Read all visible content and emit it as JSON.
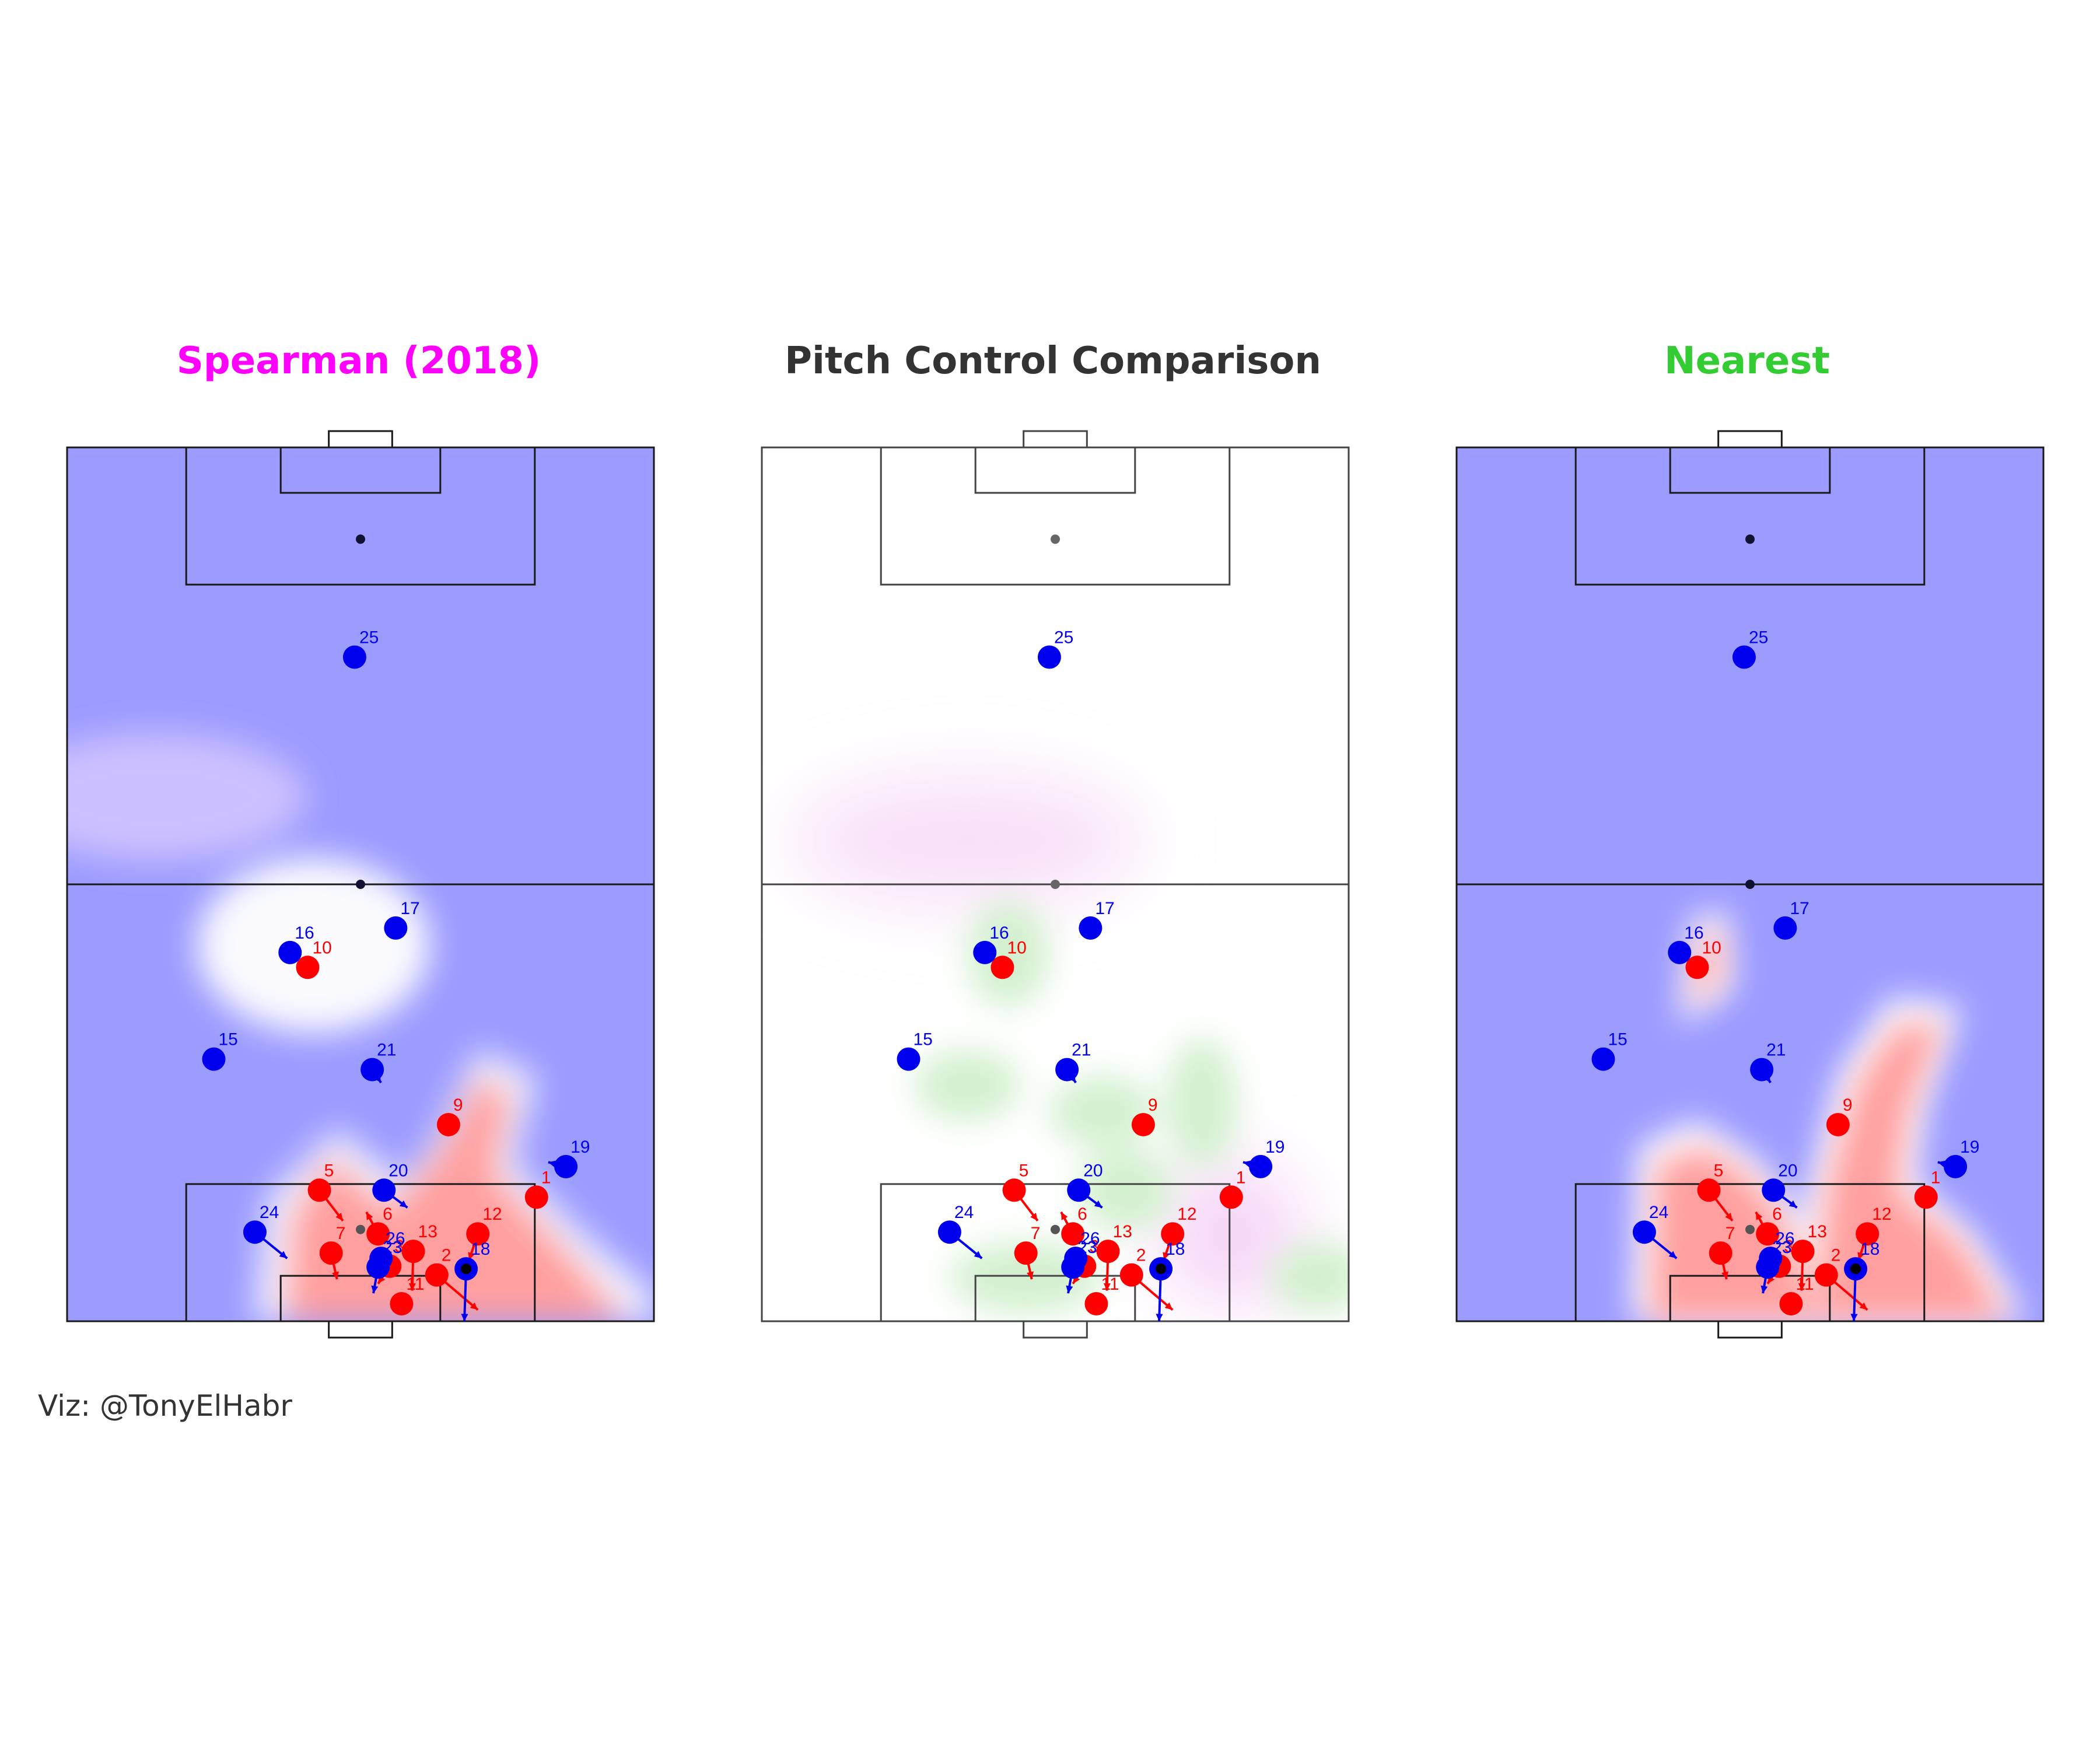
{
  "chart_data": {
    "type": "scatter",
    "title": "Pitch Control Comparison",
    "caption": "Viz: @TonyElHabr",
    "colors": {
      "home": "#ff0000",
      "away": "#0000ee",
      "spearman": "#ff00ff",
      "nearest": "#33cc33",
      "pitch_line": "#1a1a1a",
      "home_control": "#ff9f9f",
      "away_control": "#9c9cff"
    },
    "panels": [
      {
        "key": "spearman",
        "title": "Spearman (2018)",
        "title_color": "#ff00ff",
        "surface": "spearman"
      },
      {
        "key": "comparison",
        "title": "Pitch Control Comparison",
        "title_color": "#333333",
        "surface": "difference"
      },
      {
        "key": "nearest",
        "title": "Nearest",
        "title_color": "#33cc33",
        "surface": "nearest"
      }
    ],
    "x_range": [
      0,
      1
    ],
    "y_range": [
      0,
      1
    ],
    "ball": {
      "x": 0.5,
      "y": 0.105
    },
    "players": [
      {
        "team": "home",
        "label": "1",
        "x": 0.8,
        "y": 0.142,
        "vx": 0.0,
        "vy": 0.0
      },
      {
        "team": "home",
        "label": "2",
        "x": 0.63,
        "y": 0.053,
        "vx": 0.07,
        "vy": -0.04
      },
      {
        "team": "home",
        "label": "3",
        "x": 0.55,
        "y": 0.063,
        "vx": -0.02,
        "vy": -0.02
      },
      {
        "team": "home",
        "label": "5",
        "x": 0.43,
        "y": 0.15,
        "vx": 0.04,
        "vy": -0.035
      },
      {
        "team": "home",
        "label": "6",
        "x": 0.53,
        "y": 0.1,
        "vx": -0.02,
        "vy": 0.025
      },
      {
        "team": "home",
        "label": "7",
        "x": 0.45,
        "y": 0.078,
        "vx": 0.01,
        "vy": -0.03
      },
      {
        "team": "home",
        "label": "9",
        "x": 0.65,
        "y": 0.225,
        "vx": 0.0,
        "vy": -0.01
      },
      {
        "team": "home",
        "label": "10",
        "x": 0.41,
        "y": 0.405,
        "vx": 0.0,
        "vy": 0.0
      },
      {
        "team": "home",
        "label": "11",
        "x": 0.57,
        "y": 0.02,
        "vx": 0.0,
        "vy": 0.0
      },
      {
        "team": "home",
        "label": "12",
        "x": 0.7,
        "y": 0.1,
        "vx": -0.015,
        "vy": -0.03
      },
      {
        "team": "home",
        "label": "13",
        "x": 0.59,
        "y": 0.08,
        "vx": -0.002,
        "vy": -0.045
      },
      {
        "team": "away",
        "label": "15",
        "x": 0.25,
        "y": 0.3,
        "vx": 0.0,
        "vy": 0.0
      },
      {
        "team": "away",
        "label": "16",
        "x": 0.38,
        "y": 0.422,
        "vx": 0.0,
        "vy": 0.0
      },
      {
        "team": "away",
        "label": "17",
        "x": 0.56,
        "y": 0.45,
        "vx": 0.0,
        "vy": 0.0
      },
      {
        "team": "away",
        "label": "18",
        "x": 0.68,
        "y": 0.06,
        "vx": -0.003,
        "vy": -0.06
      },
      {
        "team": "away",
        "label": "19",
        "x": 0.85,
        "y": 0.177,
        "vx": -0.03,
        "vy": 0.005
      },
      {
        "team": "away",
        "label": "20",
        "x": 0.54,
        "y": 0.15,
        "vx": 0.04,
        "vy": -0.02
      },
      {
        "team": "away",
        "label": "21",
        "x": 0.52,
        "y": 0.288,
        "vx": 0.015,
        "vy": -0.015
      },
      {
        "team": "away",
        "label": "23",
        "x": 0.53,
        "y": 0.062,
        "vx": -0.008,
        "vy": -0.03
      },
      {
        "team": "away",
        "label": "24",
        "x": 0.32,
        "y": 0.102,
        "vx": 0.055,
        "vy": -0.03
      },
      {
        "team": "away",
        "label": "25",
        "x": 0.49,
        "y": 0.76,
        "vx": 0.0,
        "vy": 0.0
      },
      {
        "team": "away",
        "label": "26",
        "x": 0.535,
        "y": 0.072,
        "vx": 0.0,
        "vy": 0.0
      }
    ]
  }
}
